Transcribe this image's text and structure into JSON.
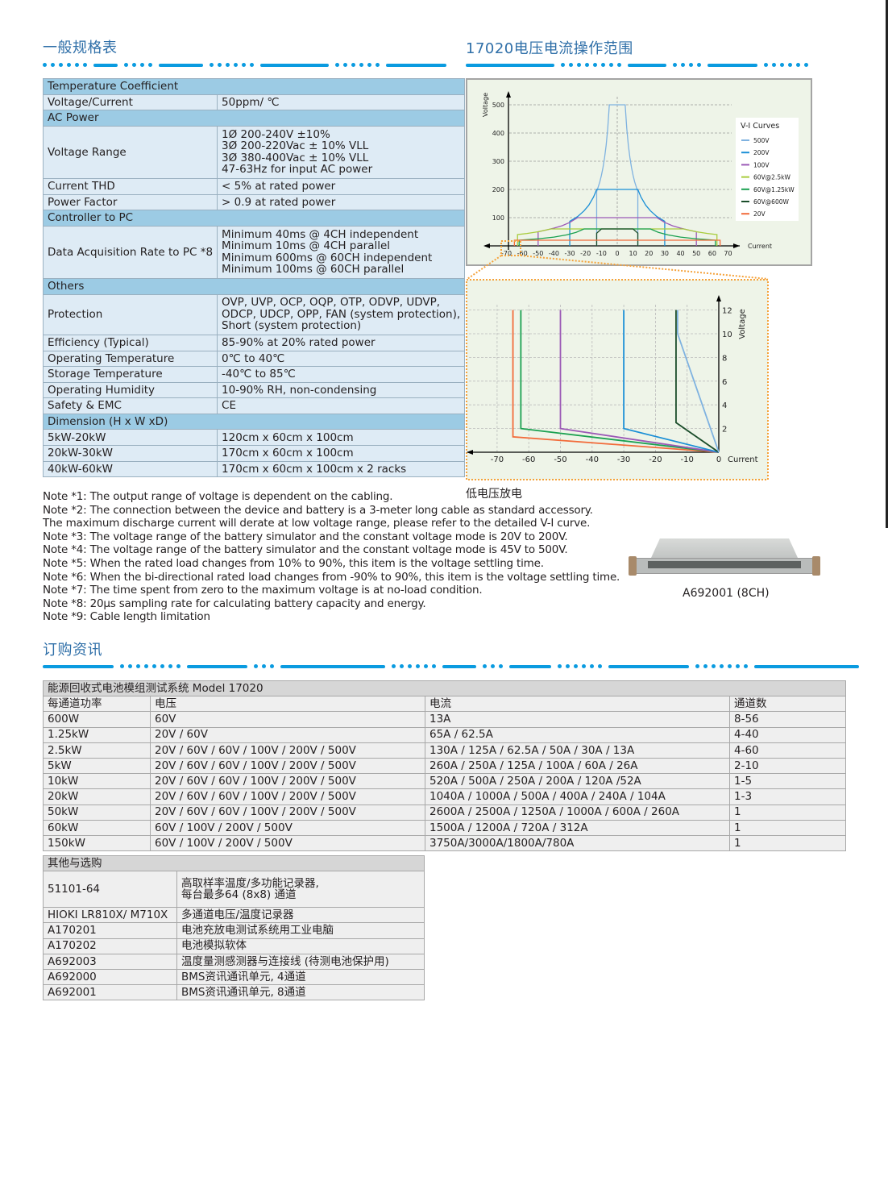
{
  "spec_section": {
    "title": "一般规格表",
    "rows": [
      {
        "type": "section",
        "label": "Temperature Coefficient"
      },
      {
        "label": "Voltage/Current",
        "value": [
          "50ppm/ ℃"
        ]
      },
      {
        "type": "section",
        "label": "AC Power"
      },
      {
        "label": "Voltage Range",
        "value": [
          "1Ø 200-240V ±10%",
          "3Ø 200-220Vac ± 10% VLL",
          "3Ø 380-400Vac ± 10% VLL",
          "47-63Hz for input AC power"
        ]
      },
      {
        "label": "Current THD",
        "value": [
          "< 5% at rated power"
        ]
      },
      {
        "label": "Power Factor",
        "value": [
          "> 0.9 at rated power"
        ]
      },
      {
        "type": "section",
        "label": "Controller to PC"
      },
      {
        "label": "Data Acquisition Rate to PC *8",
        "value": [
          "Minimum 40ms @ 4CH independent",
          "Minimum 10ms @ 4CH parallel",
          "Minimum 600ms @ 60CH independent",
          "Minimum 100ms @ 60CH parallel"
        ]
      },
      {
        "type": "section",
        "label": "Others"
      },
      {
        "label": "Protection",
        "value": [
          "OVP, UVP, OCP, OQP, OTP, ODVP, UDVP,",
          "ODCP, UDCP, OPP, FAN (system protection),",
          "Short (system protection)"
        ]
      },
      {
        "label": "Efficiency (Typical)",
        "value": [
          "85-90% at 20% rated power"
        ]
      },
      {
        "label": "Operating Temperature",
        "value": [
          "0℃ to 40℃"
        ]
      },
      {
        "label": "Storage Temperature",
        "value": [
          "-40℃ to 85℃"
        ]
      },
      {
        "label": "Operating Humidity",
        "value": [
          "10-90% RH, non-condensing"
        ]
      },
      {
        "label": "Safety & EMC",
        "value": [
          "CE"
        ]
      },
      {
        "type": "section",
        "label": "Dimension (H x W xD)"
      },
      {
        "label": "5kW-20kW",
        "value": [
          "120cm x 60cm x 100cm"
        ]
      },
      {
        "label": "20kW-30kW",
        "value": [
          "170cm x 60cm x 100cm"
        ]
      },
      {
        "label": "40kW-60kW",
        "value": [
          "170cm x 60cm x 100cm x 2 racks"
        ]
      }
    ]
  },
  "notes": [
    "Note *1: The output range of voltage is dependent on the cabling.",
    "Note *2: The connection between the device and battery is a 3-meter long cable as standard accessory.",
    "The maximum discharge current will derate at low voltage range, please refer to the detailed V-I curve.",
    "Note *3: The voltage range of the battery simulator and the constant voltage mode is 20V to 200V.",
    "Note *4: The voltage range of the battery simulator and the constant voltage mode is 45V to 500V.",
    "Note *5: When the rated load changes from 10% to 90%, this item is the voltage settling time.",
    "Note *6: When the bi-directional rated load changes from -90% to 90%, this item is the voltage settling time.",
    "Note *7: The time spent from zero to the maximum voltage is at no-load condition.",
    "Note *8: 20μs sampling rate for calculating battery capacity and energy.",
    "Note *9: Cable length limitation"
  ],
  "range_section": {
    "title": "17020电压电流操作范围",
    "low_voltage_caption": "低电压放电"
  },
  "chart_data": [
    {
      "type": "line",
      "title": "",
      "xlabel": "Current",
      "ylabel": "Voltage",
      "xlim": [
        -70,
        70
      ],
      "ylim": [
        0,
        500
      ],
      "xticks": [
        -70,
        -60,
        -50,
        -40,
        -30,
        -20,
        -10,
        0,
        10,
        20,
        30,
        40,
        50,
        60,
        70
      ],
      "yticks": [
        100,
        200,
        300,
        400,
        500
      ],
      "grid": true,
      "legend": {
        "title": "V-I Curves",
        "position": "right"
      },
      "symmetric_about_zero_current": true,
      "series": [
        {
          "name": "500V",
          "color": "#7fb2e0",
          "points": [
            [
              0,
              500
            ],
            [
              5,
              500
            ],
            [
              6,
              417
            ],
            [
              7,
              357
            ],
            [
              8,
              313
            ],
            [
              9,
              278
            ],
            [
              10,
              250
            ],
            [
              11,
              227
            ],
            [
              13,
              192
            ],
            [
              13,
              0
            ]
          ]
        },
        {
          "name": "200V",
          "color": "#1a8fd6",
          "points": [
            [
              0,
              200
            ],
            [
              13,
              200
            ],
            [
              15,
              173
            ],
            [
              18,
              144
            ],
            [
              21,
              124
            ],
            [
              25,
              104
            ],
            [
              30,
              87
            ],
            [
              30,
              0
            ]
          ]
        },
        {
          "name": "100V",
          "color": "#9b59b6",
          "points": [
            [
              0,
              100
            ],
            [
              25,
              100
            ],
            [
              30,
              83
            ],
            [
              35,
              71
            ],
            [
              40,
              63
            ],
            [
              45,
              56
            ],
            [
              50,
              50
            ],
            [
              50,
              0
            ]
          ]
        },
        {
          "name": "60V@2.5kW",
          "color": "#a8cc3c",
          "points": [
            [
              0,
              60
            ],
            [
              42,
              60
            ],
            [
              50,
              50
            ],
            [
              57,
              44
            ],
            [
              63,
              40
            ],
            [
              63,
              0
            ]
          ]
        },
        {
          "name": "60V@1.25kW",
          "color": "#1aa050",
          "points": [
            [
              0,
              60
            ],
            [
              21,
              60
            ],
            [
              26,
              48
            ],
            [
              32,
              39
            ],
            [
              40,
              31
            ],
            [
              50,
              25
            ],
            [
              62,
              20
            ],
            [
              62,
              0
            ]
          ]
        },
        {
          "name": "60V@600W",
          "color": "#1b4d2a",
          "points": [
            [
              0,
              60
            ],
            [
              10,
              60
            ],
            [
              13,
              45
            ],
            [
              13,
              0
            ]
          ]
        },
        {
          "name": "20V",
          "color": "#f26b3a",
          "points": [
            [
              0,
              20
            ],
            [
              65,
              20
            ],
            [
              65,
              0
            ]
          ]
        }
      ]
    },
    {
      "type": "line",
      "title": "低电压放电",
      "xlabel": "Current",
      "ylabel": "Voltage",
      "xlim": [
        -78,
        0
      ],
      "ylim": [
        0,
        13
      ],
      "xticks": [
        -70,
        -60,
        -50,
        -40,
        -30,
        -20,
        -10,
        0
      ],
      "yticks": [
        2,
        4,
        6,
        8,
        10,
        12
      ],
      "grid": true,
      "series": [
        {
          "color": "#f26b3a",
          "points": [
            [
              -65,
              12
            ],
            [
              -65,
              1.3
            ],
            [
              0,
              0
            ]
          ]
        },
        {
          "color": "#1aa050",
          "points": [
            [
              -62.5,
              12
            ],
            [
              -62.5,
              2
            ],
            [
              0,
              0
            ]
          ]
        },
        {
          "color": "#9b59b6",
          "points": [
            [
              -50,
              12
            ],
            [
              -50,
              2
            ],
            [
              0,
              0
            ]
          ]
        },
        {
          "color": "#1a8fd6",
          "points": [
            [
              -30,
              12
            ],
            [
              -30,
              2
            ],
            [
              0,
              0
            ]
          ]
        },
        {
          "color": "#1b4d2a",
          "points": [
            [
              -13.5,
              12
            ],
            [
              -13.5,
              2.5
            ],
            [
              0,
              0
            ]
          ]
        },
        {
          "color": "#7fb2e0",
          "points": [
            [
              -13,
              12
            ],
            [
              -13,
              10
            ],
            [
              0,
              0
            ]
          ]
        }
      ]
    }
  ],
  "product": {
    "caption": "A692001 (8CH)"
  },
  "order_section": {
    "title": "订购资讯",
    "table_title": "能源回收式电池模组测试系统 Model 17020",
    "headers": [
      "每通道功率",
      "电压",
      "电流",
      "通道数"
    ],
    "rows": [
      [
        "600W",
        "60V",
        "13A",
        "8-56"
      ],
      [
        "1.25kW",
        "20V / 60V",
        "65A / 62.5A",
        "4-40"
      ],
      [
        "2.5kW",
        "20V / 60V / 60V / 100V / 200V / 500V",
        "130A / 125A / 62.5A / 50A / 30A / 13A",
        "4-60"
      ],
      [
        "5kW",
        "20V / 60V / 60V / 100V / 200V / 500V",
        "260A / 250A / 125A / 100A / 60A / 26A",
        "2-10"
      ],
      [
        "10kW",
        "20V / 60V / 60V / 100V / 200V / 500V",
        "520A / 500A / 250A / 200A / 120A /52A",
        "1-5"
      ],
      [
        "20kW",
        "20V / 60V / 60V / 100V / 200V / 500V",
        "1040A / 1000A / 500A / 400A / 240A / 104A",
        "1-3"
      ],
      [
        "50kW",
        "20V / 60V / 60V / 100V / 200V / 500V",
        "2600A / 2500A / 1250A / 1000A / 600A / 260A",
        "1"
      ],
      [
        "60kW",
        "60V / 100V / 200V / 500V",
        "1500A / 1200A / 720A / 312A",
        "1"
      ],
      [
        "150kW",
        "60V / 100V / 200V / 500V",
        "3750A/3000A/1800A/780A",
        "1"
      ]
    ],
    "options_title": "其他与选购",
    "options": [
      [
        "51101-64",
        "高取样率温度/多功能记录器,\n每台最多64 (8x8) 通道"
      ],
      [
        "HIOKI LR810X/ M710X",
        "多通道电压/温度记录器"
      ],
      [
        "A170201",
        "电池充放电测试系统用工业电脑"
      ],
      [
        "A170202",
        "电池模拟软体"
      ],
      [
        "A692003",
        "温度量测感测器与连接线 (待测电池保护用)"
      ],
      [
        "A692000",
        "BMS资讯通讯单元, 4通道"
      ],
      [
        "A692001",
        "BMS资讯通讯单元, 8通道"
      ]
    ]
  },
  "colors": {
    "heading": "#2f6fa8",
    "deco_blue": "#0a9be0",
    "deco_green": "#6cc084",
    "spec_section_bg": "#9ccbe4",
    "spec_row_bg": "#deebf5",
    "order_section_bg": "#d6d6d6",
    "order_row_bg": "#efefef",
    "chart_bg": "#eef4e8",
    "callout": "#f5a23a"
  }
}
